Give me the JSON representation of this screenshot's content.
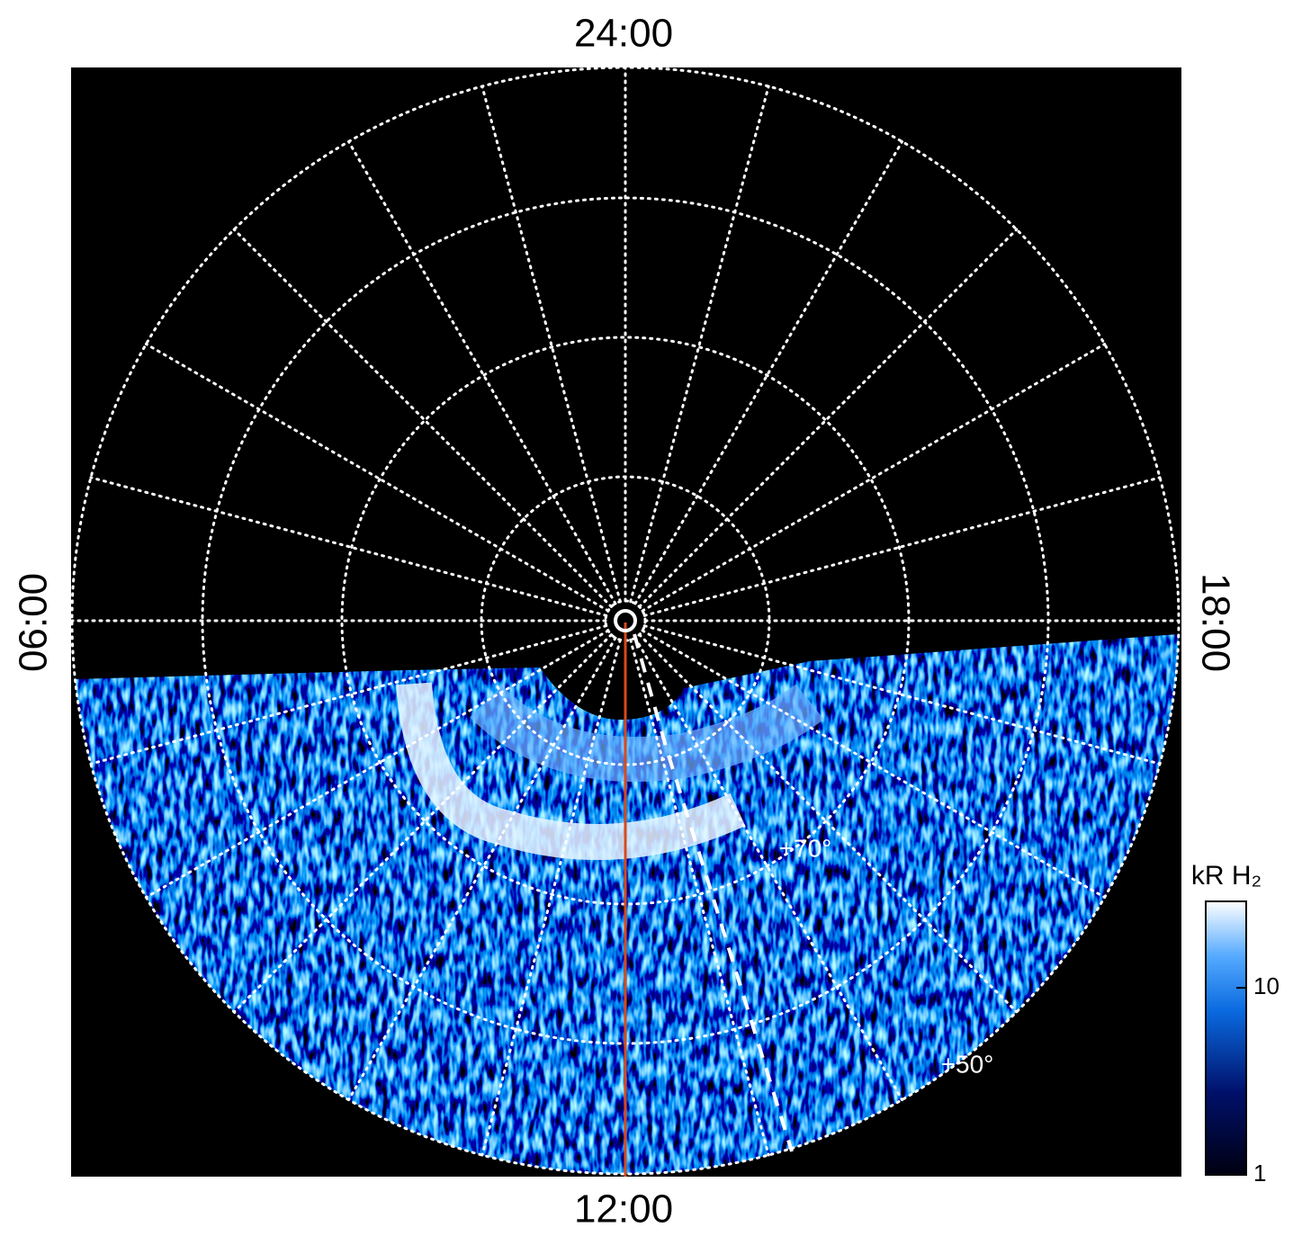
{
  "local_time_labels": {
    "top": "24:00",
    "bottom": "12:00",
    "left": "06:00",
    "right": "18:00"
  },
  "latitude_labels": [
    "+70°",
    "+50°"
  ],
  "colorbar": {
    "title": "kR H₂",
    "log_scale": true,
    "lim": [
      1,
      29
    ],
    "ticks": [
      1,
      10
    ]
  }
}
